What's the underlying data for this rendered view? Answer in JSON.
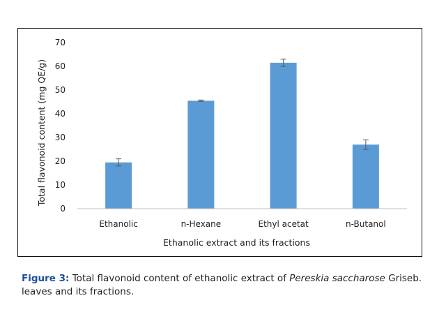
{
  "chart_data": {
    "type": "bar",
    "categories": [
      "Ethanolic",
      "n-Hexane",
      "Ethyl acetat",
      "n-Butanol"
    ],
    "values": [
      19.5,
      45.5,
      61.5,
      27
    ],
    "errors": [
      1.5,
      0.3,
      1.5,
      2
    ],
    "title": "",
    "xlabel": "Ethanolic extract and its fractions",
    "ylabel": "Total flavonoid content (mg QE/g)",
    "ylim": [
      0,
      70
    ],
    "yticks": [
      "0",
      "10",
      "20",
      "30",
      "40",
      "50",
      "60",
      "70"
    ],
    "bar_color": "#5b9bd5",
    "error_color": "#555555",
    "grid": false,
    "legend": false
  },
  "caption": {
    "label": "Figure 3:",
    "text_before": " Total flavonoid content of ethanolic extract of ",
    "species": "Pereskia saccharose",
    "text_after": " Griseb. leaves and its fractions.",
    "label_color": "#1f4e9c"
  }
}
